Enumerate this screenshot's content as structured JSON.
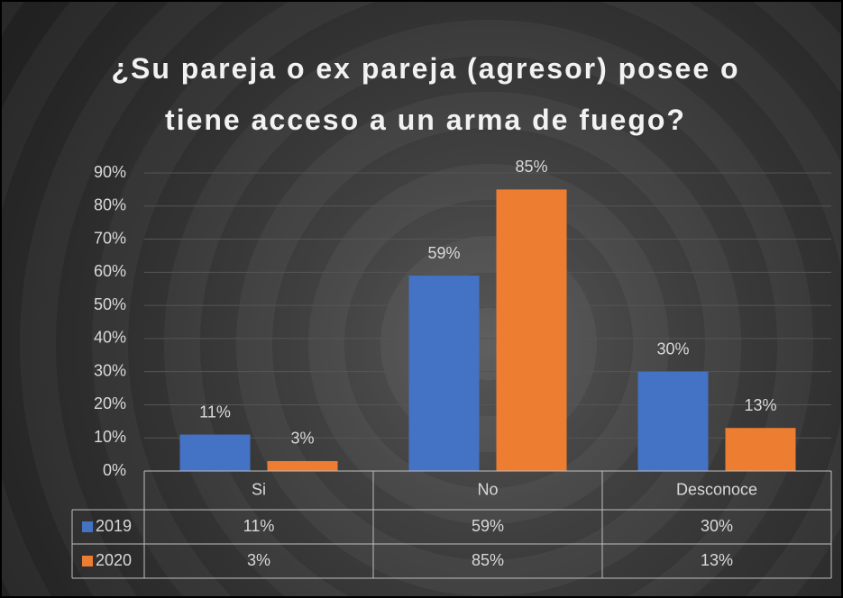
{
  "chart_data": {
    "type": "bar",
    "title": "¿Su pareja o ex pareja (agresor) posee o tiene acceso a un arma de fuego?",
    "categories": [
      "Si",
      "No",
      "Desconoce"
    ],
    "series": [
      {
        "name": "2019",
        "color": "#4472c4",
        "values": [
          11,
          59,
          30
        ],
        "value_labels": [
          "11%",
          "59%",
          "30%"
        ]
      },
      {
        "name": "2020",
        "color": "#ed7d31",
        "values": [
          3,
          85,
          13
        ],
        "value_labels": [
          "3%",
          "85%",
          "13%"
        ]
      }
    ],
    "ylim": [
      0,
      90
    ],
    "yticks": [
      {
        "value": 0,
        "label": "0%"
      },
      {
        "value": 10,
        "label": "10%"
      },
      {
        "value": 20,
        "label": "20%"
      },
      {
        "value": 30,
        "label": "30%"
      },
      {
        "value": 40,
        "label": "40%"
      },
      {
        "value": 50,
        "label": "50%"
      },
      {
        "value": 60,
        "label": "60%"
      },
      {
        "value": 70,
        "label": "70%"
      },
      {
        "value": 80,
        "label": "80%"
      },
      {
        "value": 90,
        "label": "90%"
      }
    ],
    "grid": true
  }
}
